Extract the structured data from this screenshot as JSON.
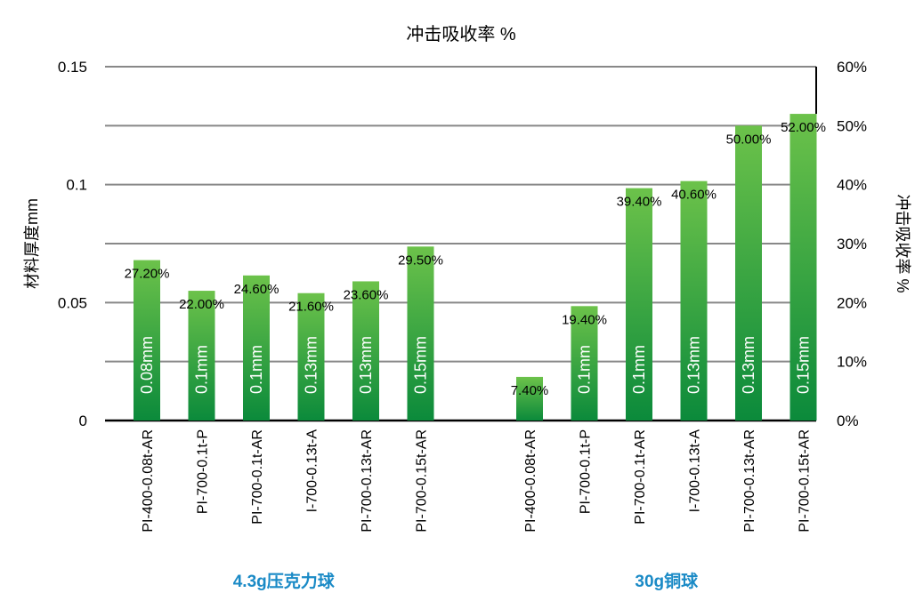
{
  "chart_data": {
    "type": "bar",
    "title": "冲击吸收率 %",
    "ylabel_left": "材料厚度mm",
    "ylabel_right": "冲击吸收率 %",
    "ylim_left": [
      0,
      0.15
    ],
    "ylim_right": [
      0,
      60
    ],
    "left_ticks": [
      "0",
      "0.05",
      "0.1",
      "0.15"
    ],
    "right_ticks": [
      "0%",
      "10%",
      "20%",
      "30%",
      "40%",
      "50%",
      "60%"
    ],
    "grid": true,
    "bar_color_top": "#6cc24a",
    "bar_color_bottom": "#0b8a3b",
    "group_label_color": "#1a8ac6",
    "groups": [
      {
        "label": "4.3g压克力球",
        "categories": [
          "PI-400-0.08t-AR",
          "PI-700-0.1t-P",
          "PI-700-0.1t-AR",
          "I-700-0.13t-A",
          "PI-700-0.13t-AR",
          "PI-700-0.15t-AR"
        ],
        "values": [
          27.2,
          22.0,
          24.6,
          21.6,
          23.6,
          29.5
        ],
        "value_labels": [
          "27.20%",
          "22.00%",
          "24.60%",
          "21.60%",
          "23.60%",
          "29.50%"
        ],
        "thickness_labels": [
          "0.08mm",
          "0.1mm",
          "0.1mm",
          "0.13mm",
          "0.13mm",
          "0.15mm"
        ]
      },
      {
        "label": "30g铜球",
        "categories": [
          "PI-400-0.08t-AR",
          "PI-700-0.1t-P",
          "PI-700-0.1t-AR",
          "I-700-0.13t-A",
          "PI-700-0.13t-AR",
          "PI-700-0.15t-AR"
        ],
        "values": [
          7.4,
          19.4,
          39.4,
          40.6,
          50.0,
          52.0
        ],
        "value_labels": [
          "7.40%",
          "19.40%",
          "39.40%",
          "40.60%",
          "50.00%",
          "52.00%"
        ],
        "thickness_labels": [
          "",
          "0.1mm",
          "0.1mm",
          "0.13mm",
          "0.13mm",
          "0.15mm"
        ]
      }
    ]
  }
}
